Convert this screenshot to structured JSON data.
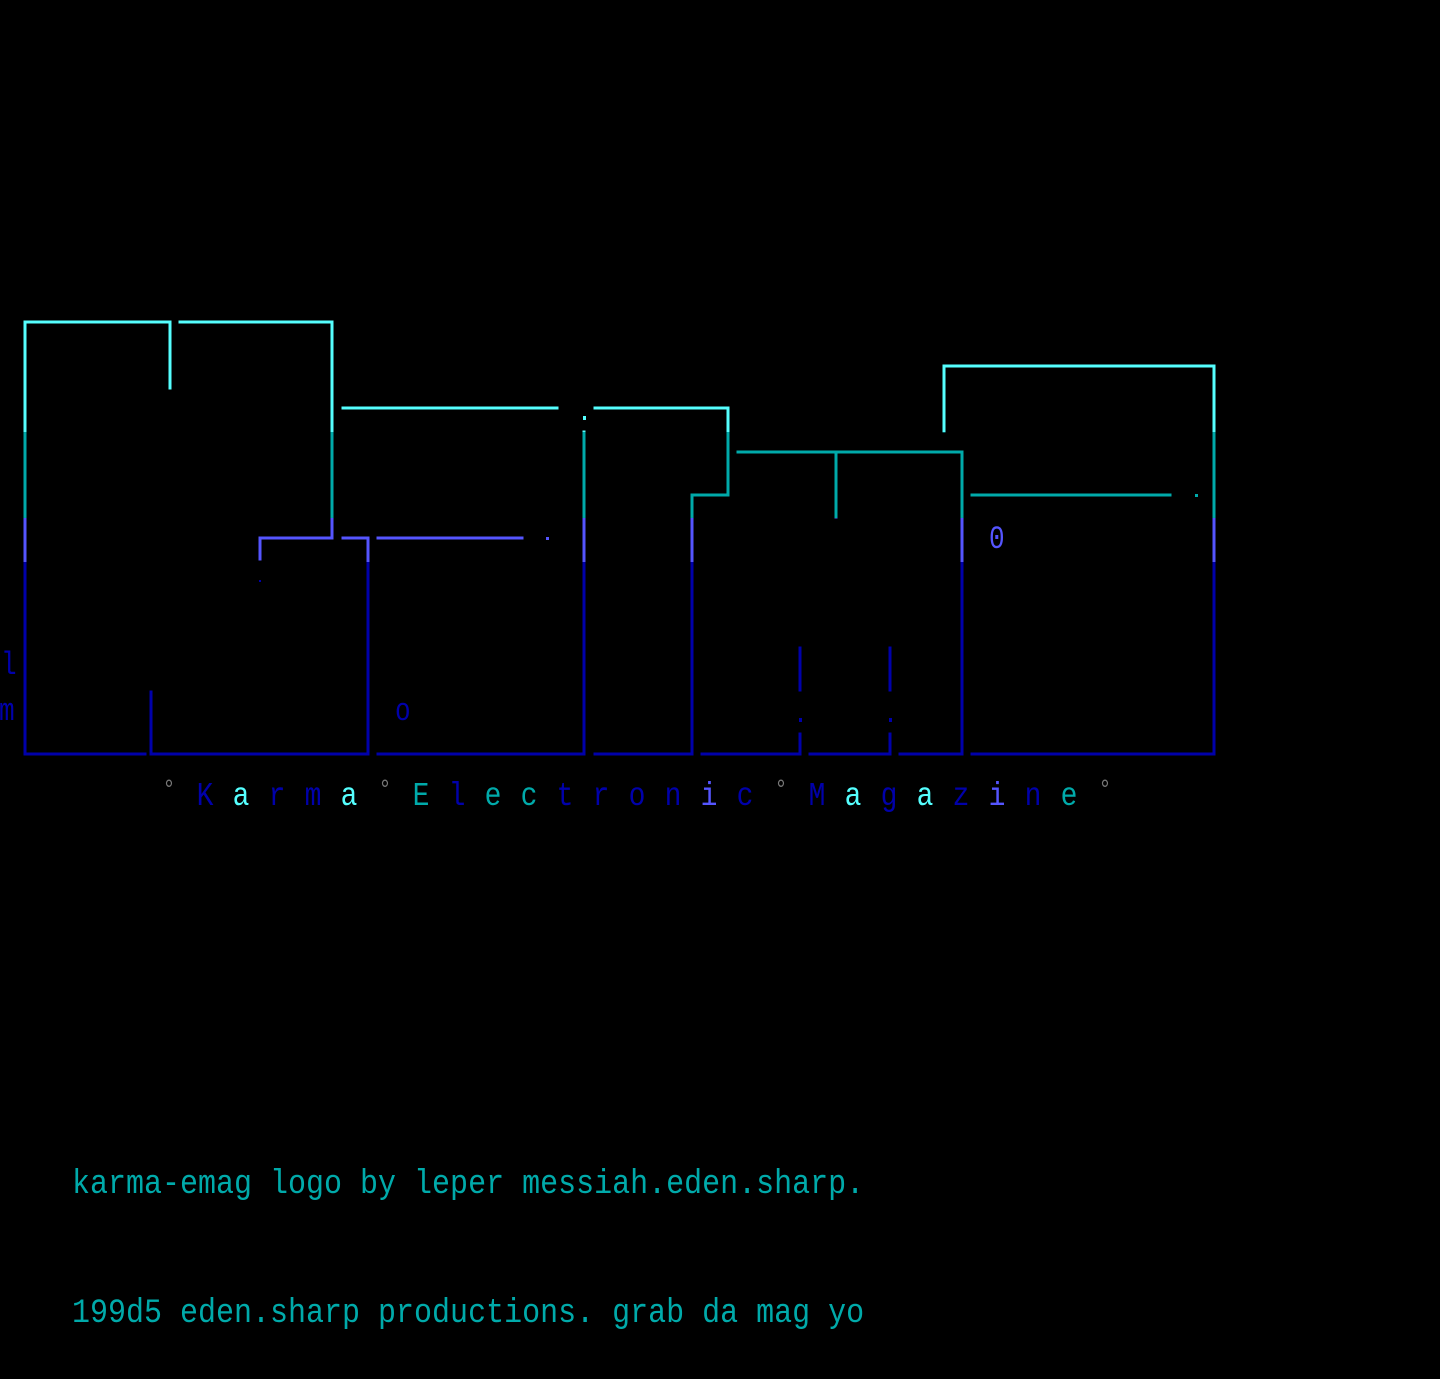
{
  "palette": {
    "light_cyan": "#55FFFF",
    "cyan": "#00AAAA",
    "light_blue": "#5555FF",
    "blue": "#0000AA",
    "gray": "#777777",
    "background": "#000000"
  },
  "logo": {
    "word": "Karma",
    "stray_chars": {
      "l": "l",
      "m": "m",
      "o": "o",
      "zero": "0"
    }
  },
  "subtitle": {
    "text": "°Karma°Electronic°Magazine°",
    "colors": [
      "#777777",
      "#0000AA",
      "#55FFFF",
      "#0000AA",
      "#0000AA",
      "#55FFFF",
      "#777777",
      "#00AAAA",
      "#0000AA",
      "#00AAAA",
      "#00AAAA",
      "#0000AA",
      "#0000AA",
      "#0000AA",
      "#0000AA",
      "#5555FF",
      "#0000AA",
      "#777777",
      "#0000AA",
      "#55FFFF",
      "#0000AA",
      "#55FFFF",
      "#0000AA",
      "#5555FF",
      "#0000AA",
      "#00AAAA",
      "#777777"
    ]
  },
  "credits": {
    "line1": "karma-emag logo by leper messiah.eden.sharp.",
    "line2": "199d5 eden.sharp productions. grab da mag yo"
  }
}
